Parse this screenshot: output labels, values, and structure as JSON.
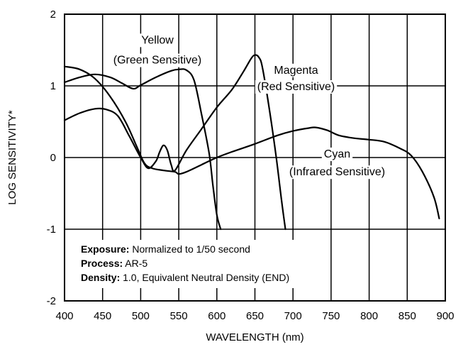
{
  "chart_data": {
    "type": "line",
    "title": "",
    "xlabel": "WAVELENGTH (nm)",
    "ylabel": "LOG SENSITIVITY*",
    "xlim": [
      400,
      900
    ],
    "ylim": [
      -2,
      2
    ],
    "x_ticks": [
      400,
      450,
      500,
      550,
      600,
      650,
      700,
      750,
      800,
      850,
      900
    ],
    "y_ticks": [
      2,
      1,
      0,
      -1,
      -2
    ],
    "grid": true,
    "line_color": "#000000",
    "series": [
      {
        "name": "Yellow (Green Sensitive)",
        "points": [
          [
            400,
            1.05
          ],
          [
            420,
            1.12
          ],
          [
            440,
            1.16
          ],
          [
            460,
            1.12
          ],
          [
            475,
            1.04
          ],
          [
            490,
            0.96
          ],
          [
            500,
            1.01
          ],
          [
            520,
            1.12
          ],
          [
            540,
            1.21
          ],
          [
            550,
            1.23
          ],
          [
            560,
            1.22
          ],
          [
            570,
            1.08
          ],
          [
            580,
            0.6
          ],
          [
            590,
            0.05
          ],
          [
            595,
            -0.4
          ],
          [
            600,
            -0.8
          ],
          [
            605,
            -1.0
          ]
        ]
      },
      {
        "name": "Magenta (Red Sensitive)",
        "points": [
          [
            400,
            0.52
          ],
          [
            420,
            0.62
          ],
          [
            440,
            0.68
          ],
          [
            455,
            0.67
          ],
          [
            470,
            0.58
          ],
          [
            485,
            0.3
          ],
          [
            500,
            0.0
          ],
          [
            510,
            -0.15
          ],
          [
            520,
            -0.05
          ],
          [
            525,
            0.08
          ],
          [
            530,
            0.17
          ],
          [
            535,
            0.1
          ],
          [
            540,
            -0.1
          ],
          [
            545,
            -0.18
          ],
          [
            560,
            0.1
          ],
          [
            580,
            0.4
          ],
          [
            600,
            0.7
          ],
          [
            620,
            0.95
          ],
          [
            635,
            1.2
          ],
          [
            645,
            1.38
          ],
          [
            650,
            1.43
          ],
          [
            655,
            1.4
          ],
          [
            660,
            1.25
          ],
          [
            670,
            0.6
          ],
          [
            678,
            0.0
          ],
          [
            685,
            -0.6
          ],
          [
            690,
            -1.0
          ]
        ]
      },
      {
        "name": "Cyan (Infrared Sensitive)",
        "points": [
          [
            400,
            1.27
          ],
          [
            420,
            1.23
          ],
          [
            440,
            1.1
          ],
          [
            460,
            0.85
          ],
          [
            480,
            0.5
          ],
          [
            495,
            0.15
          ],
          [
            505,
            -0.08
          ],
          [
            515,
            -0.15
          ],
          [
            530,
            -0.18
          ],
          [
            545,
            -0.2
          ],
          [
            550,
            -0.23
          ],
          [
            560,
            -0.2
          ],
          [
            580,
            -0.1
          ],
          [
            600,
            0.0
          ],
          [
            620,
            0.08
          ],
          [
            650,
            0.19
          ],
          [
            680,
            0.31
          ],
          [
            700,
            0.37
          ],
          [
            720,
            0.41
          ],
          [
            730,
            0.42
          ],
          [
            745,
            0.38
          ],
          [
            760,
            0.31
          ],
          [
            780,
            0.27
          ],
          [
            800,
            0.25
          ],
          [
            820,
            0.22
          ],
          [
            840,
            0.13
          ],
          [
            855,
            0.03
          ],
          [
            870,
            -0.2
          ],
          [
            885,
            -0.55
          ],
          [
            892,
            -0.85
          ]
        ]
      }
    ],
    "annotations": [
      {
        "text": "Yellow",
        "x": 522,
        "y": 1.64
      },
      {
        "text": "(Green Sensitive)",
        "x": 522,
        "y": 1.36
      },
      {
        "text": "Magenta",
        "x": 704,
        "y": 1.22
      },
      {
        "text": "(Red Sensitive)",
        "x": 704,
        "y": 0.99
      },
      {
        "text": "Cyan",
        "x": 758,
        "y": 0.05
      },
      {
        "text": "(Infrared Sensitive)",
        "x": 758,
        "y": -0.2
      }
    ],
    "notes": [
      {
        "label": "Exposure:",
        "text": " Normalized to 1/50 second"
      },
      {
        "label": "Process:",
        "text": " AR-5"
      },
      {
        "label": "Density:",
        "text": " 1.0, Equivalent Neutral Density (END)"
      }
    ]
  }
}
